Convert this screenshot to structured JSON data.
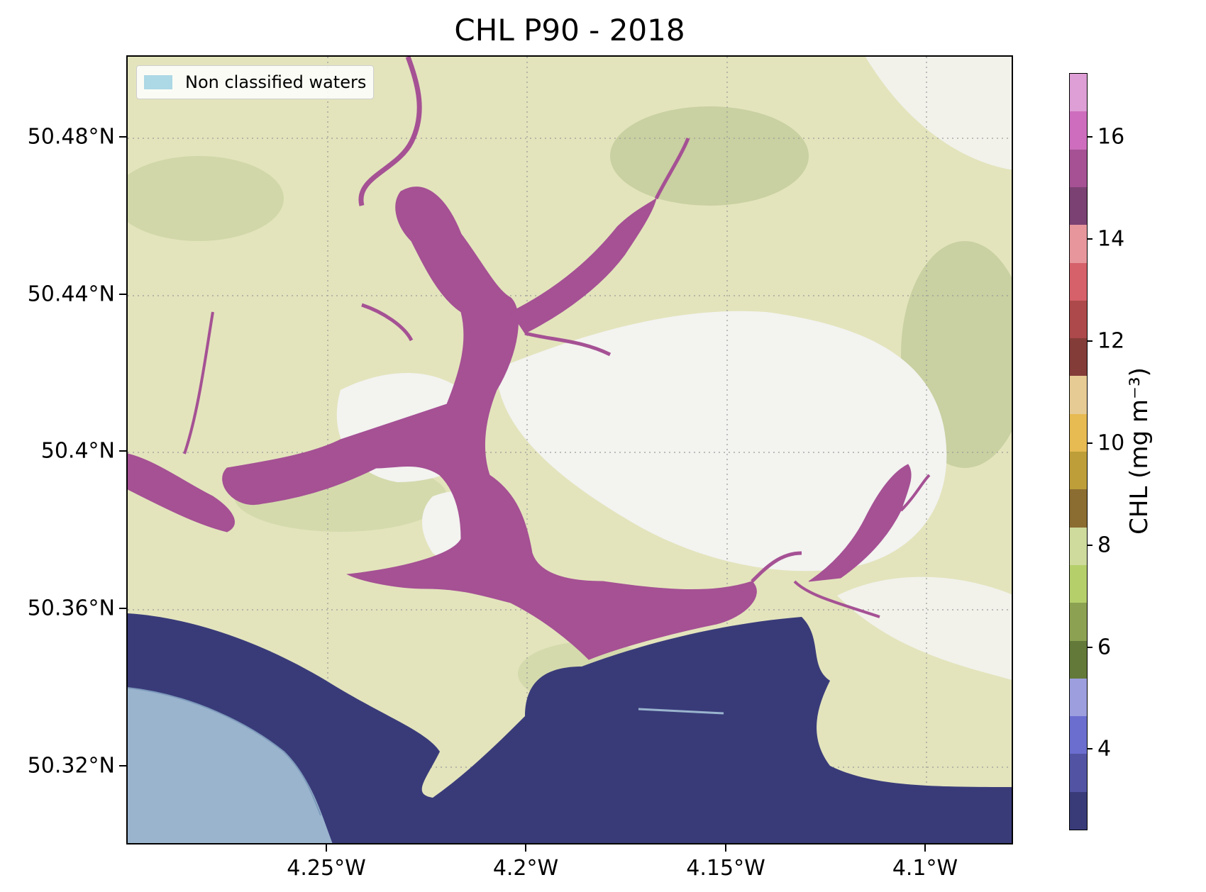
{
  "title": "CHL P90 - 2018",
  "legend": {
    "label": "Non classified waters",
    "color": "#add8e6"
  },
  "axes": {
    "lon_range": [
      -4.304,
      -4.082
    ],
    "lat_range": [
      50.299,
      50.499
    ],
    "lon_ticks": [
      {
        "value": -4.25,
        "label": "4.25°W"
      },
      {
        "value": -4.2,
        "label": "4.2°W"
      },
      {
        "value": -4.15,
        "label": "4.15°W"
      },
      {
        "value": -4.1,
        "label": "4.1°W"
      }
    ],
    "lat_ticks": [
      {
        "value": 50.48,
        "label": "50.48°N"
      },
      {
        "value": 50.44,
        "label": "50.44°N"
      },
      {
        "value": 50.4,
        "label": "50.4°N"
      },
      {
        "value": 50.36,
        "label": "50.36°N"
      },
      {
        "value": 50.32,
        "label": "50.32°N"
      }
    ],
    "gridlines": true
  },
  "colorbar": {
    "label": "CHL (mg m⁻³)",
    "range": [
      2.4,
      17.2
    ],
    "ticks": [
      4,
      6,
      8,
      10,
      12,
      14,
      16
    ],
    "colors": [
      "#393b79",
      "#5254a3",
      "#6b6ecf",
      "#9c9ede",
      "#637939",
      "#8ca252",
      "#b5cf6b",
      "#cedb9c",
      "#8c6d31",
      "#bd9e39",
      "#e7ba52",
      "#e7cb94",
      "#843c39",
      "#ad494a",
      "#d6616b",
      "#e7969c",
      "#7b4173",
      "#a55194",
      "#ce6dbd",
      "#de9ed6"
    ]
  },
  "colors": {
    "estuary_water": "#a55194",
    "sea_water": "#393b79",
    "land": "#e3e4bc",
    "land_shade": "#b4c08a",
    "upland": "#f3f3f0"
  }
}
